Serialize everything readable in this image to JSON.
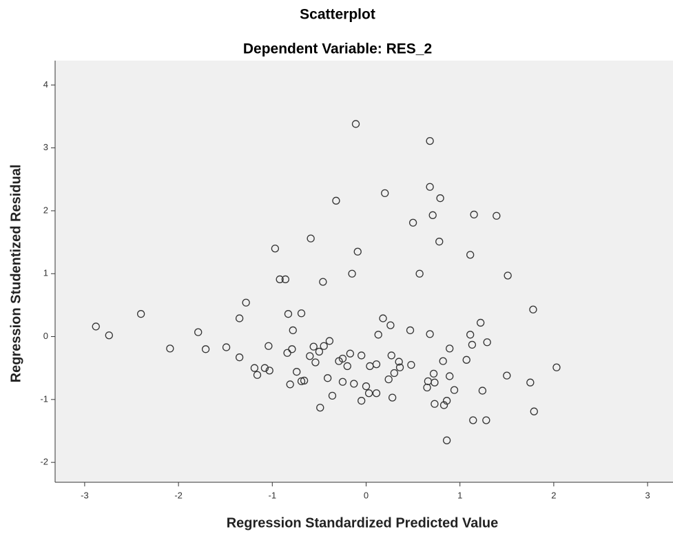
{
  "chart_data": {
    "type": "scatter",
    "title": "Scatterplot",
    "subtitle": "Dependent Variable: RES_2",
    "x_label": "Regression Standardized Predicted Value",
    "y_label": "Regression Studentized Residual",
    "xlim": [
      -3.315,
      3.271
    ],
    "ylim": [
      -2.316,
      4.387
    ],
    "xticks": [
      -3,
      -2,
      -1,
      0,
      1,
      2,
      3
    ],
    "yticks": [
      -2,
      -1,
      0,
      1,
      2,
      3,
      4
    ],
    "color": "#333333",
    "x": [
      -2.88,
      -2.74,
      -2.4,
      -2.09,
      -1.79,
      -1.71,
      -1.49,
      -1.35,
      -1.35,
      -1.28,
      -1.19,
      -1.16,
      -1.08,
      -1.04,
      -1.03,
      -0.97,
      -0.92,
      -0.86,
      -0.84,
      -0.83,
      -0.81,
      -0.79,
      -0.78,
      -0.74,
      -0.69,
      -0.69,
      -0.66,
      -0.59,
      -0.6,
      -0.56,
      -0.54,
      -0.5,
      -0.49,
      -0.46,
      -0.45,
      -0.41,
      -0.39,
      -0.36,
      -0.32,
      -0.29,
      -0.25,
      -0.25,
      -0.2,
      -0.17,
      -0.15,
      -0.13,
      -0.11,
      -0.09,
      -0.05,
      -0.05,
      0.0,
      0.03,
      0.04,
      0.11,
      0.11,
      0.13,
      0.18,
      0.2,
      0.24,
      0.26,
      0.27,
      0.28,
      0.3,
      0.35,
      0.36,
      0.47,
      0.48,
      0.5,
      0.57,
      0.65,
      0.66,
      0.68,
      0.68,
      0.68,
      0.71,
      0.72,
      0.73,
      0.73,
      0.78,
      0.79,
      0.82,
      0.83,
      0.86,
      0.86,
      0.89,
      0.89,
      0.94,
      1.07,
      1.11,
      1.11,
      1.13,
      1.14,
      1.15,
      1.22,
      1.24,
      1.28,
      1.29,
      1.39,
      1.51,
      1.5,
      1.75,
      1.78,
      1.79,
      2.03
    ],
    "values": [
      0.16,
      0.02,
      0.36,
      -0.19,
      0.07,
      -0.2,
      -0.17,
      0.29,
      -0.33,
      0.54,
      -0.5,
      -0.61,
      -0.5,
      -0.15,
      -0.54,
      1.4,
      0.91,
      0.91,
      -0.26,
      0.36,
      -0.76,
      -0.2,
      0.1,
      -0.56,
      0.37,
      -0.71,
      -0.7,
      1.56,
      -0.31,
      -0.16,
      -0.41,
      -0.24,
      -1.13,
      0.87,
      -0.15,
      -0.66,
      -0.07,
      -0.94,
      2.16,
      -0.39,
      -0.35,
      -0.72,
      -0.47,
      -0.27,
      1.0,
      -0.75,
      3.38,
      1.35,
      -0.3,
      -1.02,
      -0.79,
      -0.9,
      -0.47,
      -0.9,
      -0.44,
      0.03,
      0.29,
      2.28,
      -0.68,
      0.18,
      -0.3,
      -0.97,
      -0.58,
      -0.4,
      -0.49,
      0.1,
      -0.45,
      1.81,
      1.0,
      -0.81,
      -0.71,
      0.04,
      2.38,
      3.11,
      1.93,
      -0.59,
      -0.73,
      -1.07,
      1.51,
      2.2,
      -0.39,
      -1.09,
      -1.02,
      -1.65,
      -0.19,
      -0.63,
      -0.85,
      -0.37,
      1.3,
      0.03,
      -0.13,
      -1.33,
      1.94,
      0.22,
      -0.86,
      -1.33,
      -0.09,
      1.92,
      0.97,
      -0.62,
      -0.73,
      0.43,
      -1.19,
      -0.49
    ]
  }
}
